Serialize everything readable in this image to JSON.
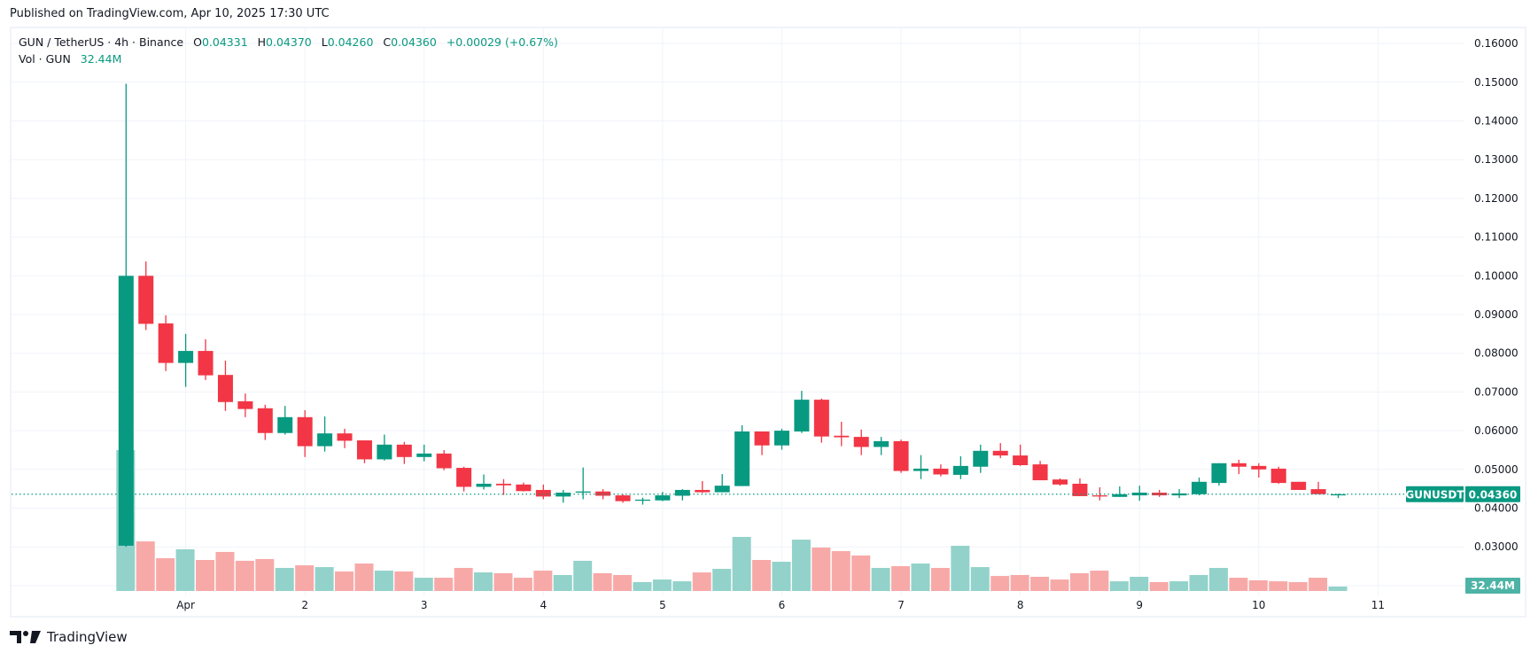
{
  "published": "Published on TradingView.com, Apr 10, 2025 17:30 UTC",
  "legend": {
    "symbol": "GUN / TetherUS · 4h · Binance",
    "open_label": "O",
    "open": "0.04331",
    "high_label": "H",
    "high": "0.04370",
    "low_label": "L",
    "low": "0.04260",
    "close_label": "C",
    "close": "0.04360",
    "change": "+0.00029 (+0.67%)",
    "vol_label": "Vol · GUN",
    "vol_value": "32.44M"
  },
  "price_tag": {
    "symbol": "GUNUSDT",
    "price": "0.04360",
    "value": 0.0436
  },
  "volume_tag": "32.44M",
  "footer": {
    "brand": "TradingView"
  },
  "colors": {
    "up": "#089981",
    "down": "#F23645",
    "vol_up": "#92d2ca",
    "vol_down": "#f7a9a8",
    "grid": "#f0f3fa",
    "vol_tag": "#4db3a6"
  },
  "chart_data": {
    "type": "candlestick",
    "interval": "4h",
    "title": "GUN / TetherUS · 4h · Binance",
    "y_axis": {
      "min": 0.02,
      "max": 0.16,
      "ticks": [
        "0.03000",
        "0.04000",
        "0.05000",
        "0.06000",
        "0.07000",
        "0.08000",
        "0.09000",
        "0.10000",
        "0.11000",
        "0.12000",
        "0.13000",
        "0.14000",
        "0.15000",
        "0.16000"
      ]
    },
    "x_axis": {
      "labels": [
        "Apr",
        "2",
        "3",
        "4",
        "5",
        "6",
        "7",
        "8",
        "9",
        "10",
        "11"
      ],
      "first_label_candle_index": 3,
      "candles_per_day": 6
    },
    "volume_unit": "M",
    "candles_ohlcv": [
      [
        0.0303,
        0.1496,
        0.03,
        0.1,
        1032
      ],
      [
        0.1,
        0.1037,
        0.086,
        0.0876,
        363
      ],
      [
        0.0877,
        0.0898,
        0.0754,
        0.0775,
        240
      ],
      [
        0.0775,
        0.085,
        0.0713,
        0.0806,
        305
      ],
      [
        0.0806,
        0.0836,
        0.0731,
        0.0743,
        227
      ],
      [
        0.0744,
        0.0781,
        0.0651,
        0.0674,
        286
      ],
      [
        0.0676,
        0.0696,
        0.0635,
        0.0656,
        221
      ],
      [
        0.0658,
        0.0667,
        0.0576,
        0.0594,
        234
      ],
      [
        0.0594,
        0.0664,
        0.059,
        0.0635,
        169
      ],
      [
        0.0635,
        0.0653,
        0.0532,
        0.056,
        188
      ],
      [
        0.056,
        0.0637,
        0.0546,
        0.0593,
        175
      ],
      [
        0.0593,
        0.0605,
        0.0555,
        0.0574,
        143
      ],
      [
        0.0575,
        0.0575,
        0.0516,
        0.0526,
        201
      ],
      [
        0.0526,
        0.059,
        0.0523,
        0.0564,
        149
      ],
      [
        0.0564,
        0.0571,
        0.0514,
        0.0532,
        143
      ],
      [
        0.0532,
        0.0564,
        0.0521,
        0.0541,
        97
      ],
      [
        0.0541,
        0.055,
        0.0498,
        0.0503,
        97
      ],
      [
        0.0504,
        0.0507,
        0.0443,
        0.0455,
        169
      ],
      [
        0.0455,
        0.0487,
        0.0448,
        0.0463,
        136
      ],
      [
        0.0463,
        0.0475,
        0.0434,
        0.0459,
        130
      ],
      [
        0.0461,
        0.0466,
        0.0443,
        0.0444,
        97
      ],
      [
        0.0447,
        0.0461,
        0.0423,
        0.043,
        149
      ],
      [
        0.043,
        0.0447,
        0.0414,
        0.044,
        117
      ],
      [
        0.044,
        0.0505,
        0.0423,
        0.0443,
        221
      ],
      [
        0.0443,
        0.0449,
        0.0423,
        0.0432,
        130
      ],
      [
        0.0433,
        0.0436,
        0.0414,
        0.0418,
        117
      ],
      [
        0.042,
        0.0427,
        0.0409,
        0.0422,
        65
      ],
      [
        0.042,
        0.0442,
        0.0418,
        0.0433,
        84
      ],
      [
        0.0432,
        0.0449,
        0.042,
        0.0447,
        71
      ],
      [
        0.0447,
        0.047,
        0.0439,
        0.0441,
        136
      ],
      [
        0.0441,
        0.0488,
        0.0441,
        0.0458,
        162
      ],
      [
        0.0457,
        0.0614,
        0.0457,
        0.0598,
        396
      ],
      [
        0.0598,
        0.0598,
        0.0537,
        0.0562,
        227
      ],
      [
        0.0562,
        0.0605,
        0.0551,
        0.06,
        214
      ],
      [
        0.0598,
        0.0703,
        0.0594,
        0.068,
        376
      ],
      [
        0.068,
        0.0683,
        0.0569,
        0.0585,
        318
      ],
      [
        0.0587,
        0.0623,
        0.056,
        0.0583,
        292
      ],
      [
        0.0584,
        0.0603,
        0.0537,
        0.0558,
        260
      ],
      [
        0.0558,
        0.0584,
        0.0537,
        0.0573,
        169
      ],
      [
        0.0573,
        0.0577,
        0.0491,
        0.0496,
        182
      ],
      [
        0.0496,
        0.0537,
        0.0475,
        0.0502,
        201
      ],
      [
        0.0502,
        0.0513,
        0.0482,
        0.0487,
        169
      ],
      [
        0.0486,
        0.0534,
        0.0475,
        0.0509,
        331
      ],
      [
        0.0507,
        0.0564,
        0.0491,
        0.0548,
        175
      ],
      [
        0.0548,
        0.0568,
        0.0529,
        0.0536,
        110
      ],
      [
        0.0536,
        0.0564,
        0.0509,
        0.0511,
        117
      ],
      [
        0.0513,
        0.0522,
        0.0472,
        0.0472,
        104
      ],
      [
        0.0474,
        0.0477,
        0.0458,
        0.0461,
        84
      ],
      [
        0.0463,
        0.0477,
        0.0431,
        0.0431,
        130
      ],
      [
        0.0433,
        0.0454,
        0.042,
        0.0431,
        149
      ],
      [
        0.0429,
        0.0456,
        0.0429,
        0.0436,
        71
      ],
      [
        0.0433,
        0.0458,
        0.0419,
        0.044,
        104
      ],
      [
        0.044,
        0.0447,
        0.0429,
        0.0433,
        65
      ],
      [
        0.0433,
        0.0449,
        0.0426,
        0.0438,
        71
      ],
      [
        0.0436,
        0.0479,
        0.0433,
        0.0468,
        117
      ],
      [
        0.0465,
        0.0516,
        0.0458,
        0.0516,
        169
      ],
      [
        0.0516,
        0.0525,
        0.0488,
        0.0507,
        97
      ],
      [
        0.0509,
        0.0516,
        0.0479,
        0.05,
        78
      ],
      [
        0.0502,
        0.0507,
        0.0463,
        0.0465,
        71
      ],
      [
        0.0468,
        0.0468,
        0.0447,
        0.0447,
        65
      ],
      [
        0.0449,
        0.0468,
        0.0436,
        0.0436,
        97
      ],
      [
        0.04331,
        0.0437,
        0.0426,
        0.0436,
        32.44
      ]
    ]
  }
}
